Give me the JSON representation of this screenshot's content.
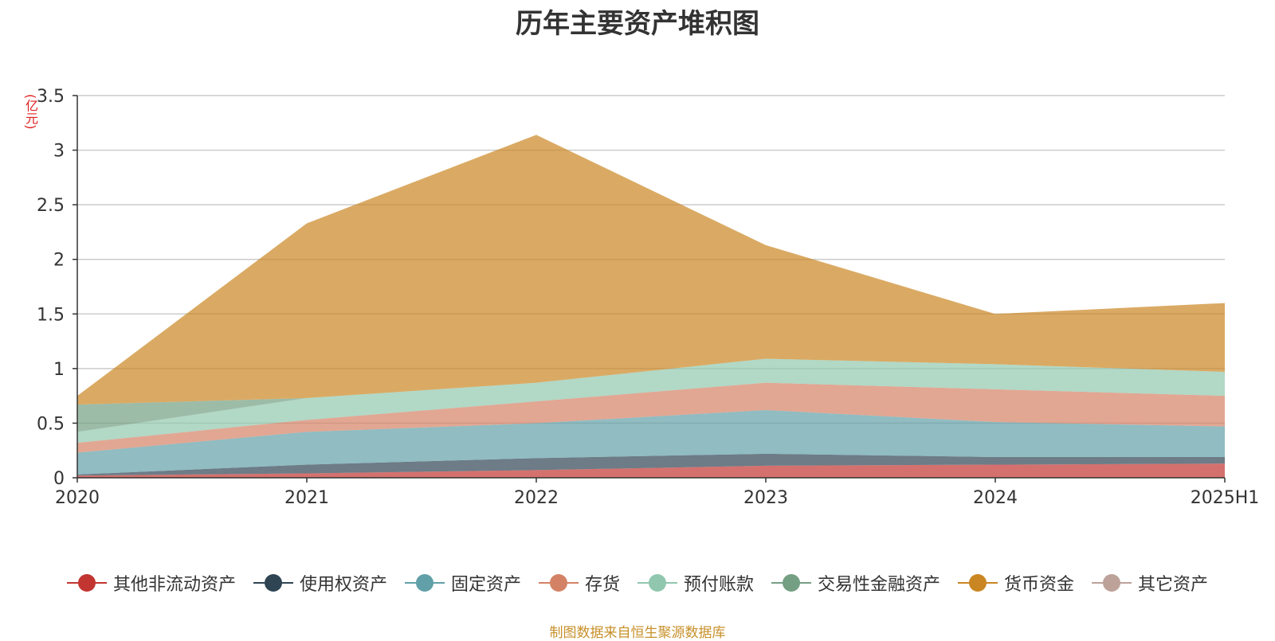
{
  "chart_data": {
    "type": "area",
    "stacked": true,
    "title": "历年主要资产堆积图",
    "ylabel": "(亿元)",
    "xlabel": "",
    "categories": [
      "2020",
      "2021",
      "2022",
      "2023",
      "2024",
      "2025H1"
    ],
    "ylim": [
      0,
      3.5
    ],
    "yticks": [
      "0",
      "0.5",
      "1",
      "1.5",
      "2",
      "2.5",
      "3",
      "3.5"
    ],
    "grid": true,
    "legend_position": "bottom",
    "series": [
      {
        "name": "其他非流动资产",
        "color": "#c23531",
        "values": [
          0.02,
          0.04,
          0.07,
          0.11,
          0.12,
          0.13
        ]
      },
      {
        "name": "使用权资产",
        "color": "#2f4554",
        "values": [
          0.01,
          0.08,
          0.11,
          0.11,
          0.07,
          0.06
        ]
      },
      {
        "name": "固定资产",
        "color": "#61a0a8",
        "values": [
          0.2,
          0.3,
          0.32,
          0.4,
          0.32,
          0.28
        ]
      },
      {
        "name": "存货",
        "color": "#d48265",
        "values": [
          0.09,
          0.11,
          0.2,
          0.25,
          0.3,
          0.28
        ]
      },
      {
        "name": "预付账款",
        "color": "#91c7ae",
        "values": [
          0.1,
          0.2,
          0.17,
          0.22,
          0.23,
          0.22
        ]
      },
      {
        "name": "交易性金融资产",
        "color": "#749f83",
        "values": [
          0.25,
          0,
          0,
          0,
          0,
          0
        ]
      },
      {
        "name": "货币资金",
        "color": "#ca8622",
        "values": [
          0.08,
          1.6,
          2.27,
          1.04,
          0.46,
          0.63
        ]
      },
      {
        "name": "其它资产",
        "color": "#bda29a",
        "values": [
          0,
          0,
          0,
          0,
          0,
          0
        ]
      }
    ]
  },
  "footer": {
    "source": "制图数据来自恒生聚源数据库"
  }
}
